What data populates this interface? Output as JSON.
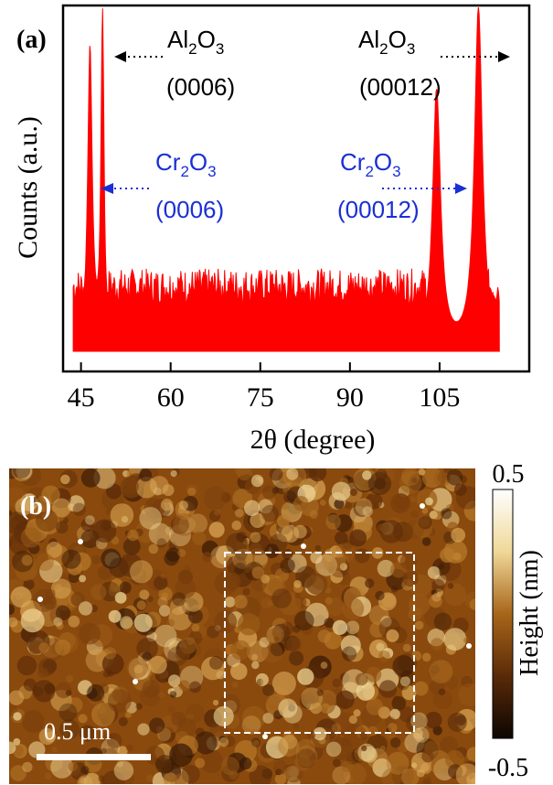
{
  "colors": {
    "trace": "#ff0000",
    "al_annot": "#000000",
    "cr_annot": "#1a2fd6",
    "afm_dark": "#2a1205",
    "afm_mid": "#8a4a0e",
    "afm_light": "#f4e2b0"
  },
  "panel_a": {
    "label": "(a)",
    "chart_data": {
      "type": "line",
      "xlabel_prefix": "2",
      "xlabel_theta": "θ",
      "xlabel_suffix": " (degree)",
      "ylabel": "Counts (a.u.)",
      "xlim": [
        42,
        120
      ],
      "xticks": [
        45,
        60,
        75,
        90,
        105
      ],
      "yticks_shown": false,
      "series": [
        {
          "peaks": [
            {
              "x": 46.5,
              "y": 0.91,
              "w": 0.45
            },
            {
              "x": 48.6,
              "y": 1.0,
              "w": 0.3
            },
            {
              "x": 104.5,
              "y": 0.78,
              "w": 0.8
            },
            {
              "x": 111.5,
              "y": 1.03,
              "w": 0.8
            },
            {
              "x": 77.0,
              "y": 0.24,
              "w": 0.3
            }
          ],
          "baseline": 0.2
        }
      ],
      "annotations": [
        {
          "species": "Al",
          "sub1": "2",
          "sub2": "3",
          "plane": "(0006)",
          "peak_x": 48.6
        },
        {
          "species": "Al",
          "sub1": "2",
          "sub2": "3",
          "plane": "(00012)",
          "peak_x": 111.5
        },
        {
          "species": "Cr",
          "sub1": "2",
          "sub2": "3",
          "plane": "(0006)",
          "peak_x": 46.5
        },
        {
          "species": "Cr",
          "sub1": "2",
          "sub2": "3",
          "plane": "(00012)",
          "peak_x": 104.5
        }
      ]
    }
  },
  "panel_b": {
    "label": "(b)",
    "scale_bar": "0.5 μm",
    "colorbar": {
      "max": "0.5",
      "min": "-0.5",
      "label": "Height (nm)"
    }
  }
}
